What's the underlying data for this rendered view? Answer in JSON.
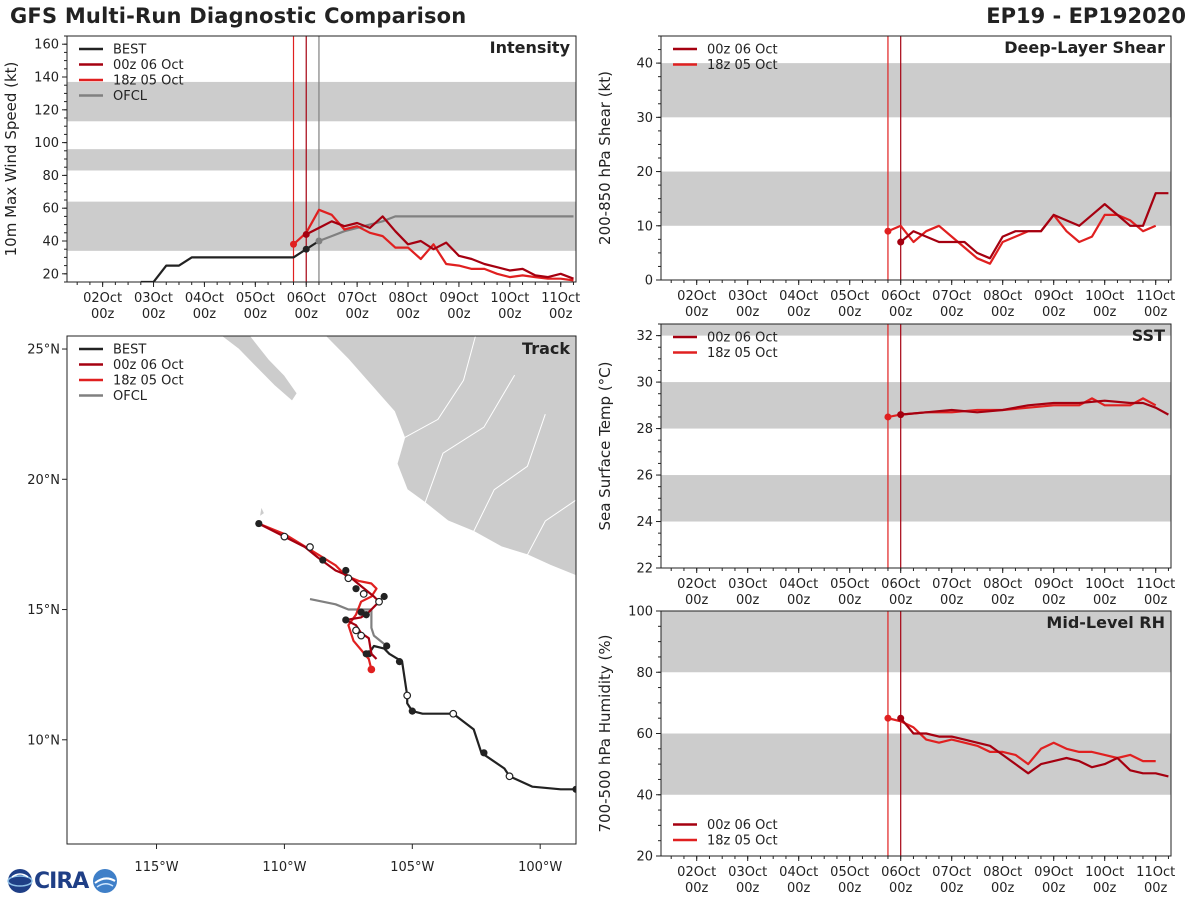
{
  "header": {
    "title": "GFS Multi-Run Diagnostic Comparison",
    "storm_id": "EP19 - EP192020"
  },
  "logo": {
    "text": "CIRA"
  },
  "colors": {
    "best": "#222222",
    "run00": "#a50010",
    "run18": "#e02020",
    "ofcl": "#808080",
    "band": "#cccccc",
    "land": "#cccccc"
  },
  "time_axis": {
    "ticks": [
      {
        "t": 0,
        "line1": "02Oct",
        "line2": "00z"
      },
      {
        "t": 1,
        "line1": "03Oct",
        "line2": "00z"
      },
      {
        "t": 2,
        "line1": "04Oct",
        "line2": "00z"
      },
      {
        "t": 3,
        "line1": "05Oct",
        "line2": "00z"
      },
      {
        "t": 4,
        "line1": "06Oct",
        "line2": "00z"
      },
      {
        "t": 5,
        "line1": "07Oct",
        "line2": "00z"
      },
      {
        "t": 6,
        "line1": "08Oct",
        "line2": "00z"
      },
      {
        "t": 7,
        "line1": "09Oct",
        "line2": "00z"
      },
      {
        "t": 8,
        "line1": "10Oct",
        "line2": "00z"
      },
      {
        "t": 9,
        "line1": "11Oct",
        "line2": "00z"
      }
    ],
    "xlim": [
      -0.7,
      9.3
    ]
  },
  "chart_data": [
    {
      "id": "intensity",
      "type": "line",
      "title": "Intensity",
      "ylabel": "10m Max Wind Speed (kt)",
      "xlim": [
        -0.7,
        9.3
      ],
      "ylim": [
        15,
        165
      ],
      "yticks": [
        20,
        40,
        60,
        80,
        100,
        120,
        140,
        160
      ],
      "bands": [
        [
          34,
          64
        ],
        [
          83,
          96
        ],
        [
          113,
          137
        ]
      ],
      "vlines": [
        {
          "t": 3.75,
          "color": "run18"
        },
        {
          "t": 4.0,
          "color": "run00"
        },
        {
          "t": 4.25,
          "color": "ofcl"
        }
      ],
      "legend": [
        {
          "label": "BEST",
          "color": "best"
        },
        {
          "label": "00z 06 Oct",
          "color": "run00"
        },
        {
          "label": "18z 05 Oct",
          "color": "run18"
        },
        {
          "label": "OFCL",
          "color": "ofcl"
        }
      ],
      "series": [
        {
          "name": "BEST",
          "color": "best",
          "x": [
            0.75,
            1.0,
            1.25,
            1.5,
            1.75,
            2.0,
            3.75,
            4.0,
            4.25
          ],
          "y": [
            15,
            15,
            25,
            25,
            30,
            30,
            30,
            35,
            40
          ],
          "markers": [
            4.0
          ]
        },
        {
          "name": "OFCL",
          "color": "ofcl",
          "x": [
            4.25,
            4.5,
            4.75,
            5.0,
            5.25,
            5.5,
            5.75,
            6.0,
            7.0,
            8.0,
            9.25
          ],
          "y": [
            40,
            43,
            46,
            48,
            50,
            52,
            55,
            55,
            55,
            55,
            55
          ],
          "markers": [
            4.25
          ]
        },
        {
          "name": "18z 05 Oct",
          "color": "run18",
          "x": [
            3.75,
            4.0,
            4.25,
            4.5,
            4.75,
            5.0,
            5.25,
            5.5,
            5.75,
            6.0,
            6.25,
            6.5,
            6.75,
            7.0,
            7.25,
            7.5,
            7.75,
            8.0,
            8.25,
            8.5,
            8.75,
            9.0,
            9.25
          ],
          "y": [
            38,
            45,
            59,
            56,
            47,
            49,
            45,
            43,
            36,
            36,
            29,
            38,
            26,
            25,
            23,
            23,
            20,
            18,
            19,
            18,
            17,
            17,
            16
          ],
          "markers": [
            3.75
          ]
        },
        {
          "name": "00z 06 Oct",
          "color": "run00",
          "x": [
            4.0,
            4.25,
            4.5,
            4.75,
            5.0,
            5.25,
            5.5,
            5.75,
            6.0,
            6.25,
            6.5,
            6.75,
            7.0,
            7.25,
            7.5,
            7.75,
            8.0,
            8.25,
            8.5,
            8.75,
            9.0,
            9.25
          ],
          "y": [
            44,
            48,
            52,
            49,
            51,
            48,
            55,
            46,
            38,
            40,
            35,
            39,
            31,
            29,
            26,
            24,
            22,
            23,
            19,
            18,
            20,
            17
          ],
          "markers": [
            4.0
          ]
        }
      ]
    },
    {
      "id": "shear",
      "type": "line",
      "title": "Deep-Layer Shear",
      "ylabel": "200-850 hPa Shear (kt)",
      "xlim": [
        -0.7,
        9.3
      ],
      "ylim": [
        0,
        45
      ],
      "yticks": [
        0,
        10,
        20,
        30,
        40
      ],
      "bands": [
        [
          10,
          20
        ],
        [
          30,
          40
        ]
      ],
      "vlines": [
        {
          "t": 3.75,
          "color": "run18"
        },
        {
          "t": 4.0,
          "color": "run00"
        }
      ],
      "legend": [
        {
          "label": "00z 06 Oct",
          "color": "run00"
        },
        {
          "label": "18z 05 Oct",
          "color": "run18"
        }
      ],
      "series": [
        {
          "name": "18z 05 Oct",
          "color": "run18",
          "x": [
            3.75,
            4.0,
            4.25,
            4.5,
            4.75,
            5.0,
            5.25,
            5.5,
            5.75,
            6.0,
            6.25,
            6.5,
            6.75,
            7.0,
            7.25,
            7.5,
            7.75,
            8.0,
            8.25,
            8.5,
            8.75,
            9.0
          ],
          "y": [
            9,
            10,
            7,
            9,
            10,
            8,
            6,
            4,
            3,
            7,
            8,
            9,
            9,
            12,
            9,
            7,
            8,
            12,
            12,
            11,
            9,
            10
          ],
          "markers": [
            3.75
          ]
        },
        {
          "name": "00z 06 Oct",
          "color": "run00",
          "x": [
            4.0,
            4.25,
            4.5,
            4.75,
            5.0,
            5.25,
            5.5,
            5.75,
            6.0,
            6.25,
            6.5,
            6.75,
            7.0,
            7.25,
            7.5,
            7.75,
            8.0,
            8.25,
            8.5,
            8.75,
            9.0,
            9.25
          ],
          "y": [
            7,
            9,
            8,
            7,
            7,
            7,
            5,
            4,
            8,
            9,
            9,
            9,
            12,
            11,
            10,
            12,
            14,
            12,
            10,
            10,
            16,
            16
          ],
          "markers": [
            4.0
          ]
        }
      ]
    },
    {
      "id": "sst",
      "type": "line",
      "title": "SST",
      "ylabel": "Sea Surface Temp (°C)",
      "xlim": [
        -0.7,
        9.3
      ],
      "ylim": [
        22,
        32.5
      ],
      "yticks": [
        22,
        24,
        26,
        28,
        30,
        32
      ],
      "bands": [
        [
          24,
          26
        ],
        [
          28,
          30
        ],
        [
          32,
          33
        ]
      ],
      "vlines": [
        {
          "t": 3.75,
          "color": "run18"
        },
        {
          "t": 4.0,
          "color": "run00"
        }
      ],
      "legend": [
        {
          "label": "00z 06 Oct",
          "color": "run00"
        },
        {
          "label": "18z 05 Oct",
          "color": "run18"
        }
      ],
      "series": [
        {
          "name": "18z 05 Oct",
          "color": "run18",
          "x": [
            3.75,
            4.0,
            4.5,
            5.0,
            5.5,
            6.0,
            6.5,
            7.0,
            7.5,
            7.75,
            8.0,
            8.5,
            8.75,
            9.0
          ],
          "y": [
            28.5,
            28.6,
            28.7,
            28.7,
            28.8,
            28.8,
            28.9,
            29.0,
            29.0,
            29.3,
            29.0,
            29.0,
            29.3,
            29.0
          ],
          "markers": [
            3.75
          ]
        },
        {
          "name": "00z 06 Oct",
          "color": "run00",
          "x": [
            4.0,
            4.5,
            5.0,
            5.5,
            6.0,
            6.5,
            7.0,
            7.5,
            8.0,
            8.5,
            8.75,
            9.0,
            9.25
          ],
          "y": [
            28.6,
            28.7,
            28.8,
            28.7,
            28.8,
            29.0,
            29.1,
            29.1,
            29.2,
            29.1,
            29.1,
            28.9,
            28.6
          ],
          "markers": [
            4.0
          ]
        }
      ]
    },
    {
      "id": "rh",
      "type": "line",
      "title": "Mid-Level RH",
      "ylabel": "700-500 hPa Humidity (%)",
      "xlim": [
        -0.7,
        9.3
      ],
      "ylim": [
        20,
        100
      ],
      "yticks": [
        20,
        40,
        60,
        80,
        100
      ],
      "bands": [
        [
          40,
          60
        ],
        [
          80,
          100
        ]
      ],
      "vlines": [
        {
          "t": 3.75,
          "color": "run18"
        },
        {
          "t": 4.0,
          "color": "run00"
        }
      ],
      "legend": [
        {
          "label": "00z 06 Oct",
          "color": "run00"
        },
        {
          "label": "18z 05 Oct",
          "color": "run18"
        }
      ],
      "series": [
        {
          "name": "18z 05 Oct",
          "color": "run18",
          "x": [
            3.75,
            4.0,
            4.25,
            4.5,
            4.75,
            5.0,
            5.25,
            5.5,
            5.75,
            6.0,
            6.25,
            6.5,
            6.75,
            7.0,
            7.25,
            7.5,
            7.75,
            8.0,
            8.25,
            8.5,
            8.75,
            9.0
          ],
          "y": [
            65,
            64,
            62,
            58,
            57,
            58,
            57,
            56,
            54,
            54,
            53,
            50,
            55,
            57,
            55,
            54,
            54,
            53,
            52,
            53,
            51,
            51
          ],
          "markers": [
            3.75
          ]
        },
        {
          "name": "00z 06 Oct",
          "color": "run00",
          "x": [
            4.0,
            4.25,
            4.5,
            4.75,
            5.0,
            5.25,
            5.5,
            5.75,
            6.0,
            6.25,
            6.5,
            6.75,
            7.0,
            7.25,
            7.5,
            7.75,
            8.0,
            8.25,
            8.5,
            8.75,
            9.0,
            9.25
          ],
          "y": [
            65,
            60,
            60,
            59,
            59,
            58,
            57,
            56,
            53,
            50,
            47,
            50,
            51,
            52,
            51,
            49,
            50,
            52,
            48,
            47,
            47,
            46
          ],
          "markers": [
            4.0
          ]
        }
      ]
    },
    {
      "id": "track",
      "type": "line",
      "title": "Track",
      "xlim": [
        -118.5,
        -98.6
      ],
      "ylim": [
        6,
        25.5
      ],
      "xticks": [
        {
          "v": -115,
          "label": "115°W"
        },
        {
          "v": -110,
          "label": "110°W"
        },
        {
          "v": -105,
          "label": "105°W"
        },
        {
          "v": -100,
          "label": "100°W"
        }
      ],
      "yticks": [
        {
          "v": 10,
          "label": "10°N"
        },
        {
          "v": 15,
          "label": "15°N"
        },
        {
          "v": 20,
          "label": "20°N"
        },
        {
          "v": 25,
          "label": "25°N"
        }
      ],
      "legend": [
        {
          "label": "BEST",
          "color": "best"
        },
        {
          "label": "00z 06 Oct",
          "color": "run00"
        },
        {
          "label": "18z 05 Oct",
          "color": "run18"
        },
        {
          "label": "OFCL",
          "color": "ofcl"
        }
      ],
      "series": [
        {
          "name": "BEST",
          "color": "best",
          "lon": [
            -98.6,
            -99.2,
            -100.3,
            -101.2,
            -101.4,
            -102.3,
            -102.6,
            -103.4,
            -104.0,
            -104.6,
            -105.0,
            -105.2,
            -105.2,
            -105.4,
            -105.9,
            -106.1,
            -106.5,
            -106.7
          ],
          "lat": [
            8.1,
            8.1,
            8.2,
            8.6,
            8.9,
            9.5,
            10.4,
            11.0,
            11.0,
            11.0,
            11.1,
            11.4,
            11.7,
            13.0,
            13.3,
            13.5,
            13.6,
            13.3
          ],
          "filled": [
            [
              -98.6,
              8.1
            ],
            [
              -102.2,
              9.5
            ],
            [
              -105.0,
              11.1
            ],
            [
              -105.5,
              13.0
            ],
            [
              -106.7,
              13.3
            ]
          ],
          "open": [
            [
              -101.2,
              8.6
            ],
            [
              -103.4,
              11.0
            ],
            [
              -105.2,
              11.7
            ]
          ]
        },
        {
          "name": "OFCL",
          "color": "ofcl",
          "lon": [
            -106.0,
            -106.5,
            -106.6,
            -106.6,
            -107.1,
            -107.5,
            -108.0,
            -109.0
          ],
          "lat": [
            13.6,
            14.0,
            14.3,
            15.0,
            15.0,
            15.0,
            15.2,
            15.4
          ],
          "filled": [
            [
              -106.0,
              13.6
            ]
          ],
          "open": []
        },
        {
          "name": "18z 05 Oct",
          "color": "run18",
          "lon": [
            -106.6,
            -106.7,
            -107.3,
            -107.5,
            -107.2,
            -107.0,
            -106.6,
            -106.4,
            -106.6,
            -107.1,
            -107.6,
            -108.0,
            -109.0,
            -110.0,
            -111.0
          ],
          "lat": [
            12.7,
            13.1,
            13.8,
            14.4,
            14.8,
            15.3,
            15.5,
            15.8,
            16.0,
            16.1,
            16.3,
            16.7,
            17.3,
            17.9,
            18.3
          ],
          "filled": [
            [
              -106.6,
              12.7
            ]
          ],
          "open": []
        },
        {
          "name": "00z 06 Oct",
          "color": "run00",
          "lon": [
            -106.4,
            -106.6,
            -106.7,
            -107.0,
            -107.2,
            -107.6,
            -107.0,
            -106.7,
            -106.3,
            -106.5,
            -107.0,
            -107.5,
            -108.0,
            -108.7,
            -109.2,
            -110.0,
            -111.0
          ],
          "lat": [
            13.1,
            13.3,
            13.9,
            14.1,
            14.4,
            14.6,
            14.7,
            14.9,
            15.3,
            15.5,
            15.9,
            16.3,
            16.5,
            17.0,
            17.4,
            17.8,
            18.3
          ],
          "filled": [
            [
              -111.0,
              18.3
            ],
            [
              -108.5,
              16.9
            ],
            [
              -107.6,
              16.5
            ],
            [
              -107.2,
              15.8
            ],
            [
              -106.1,
              15.5
            ],
            [
              -107.0,
              14.9
            ],
            [
              -106.8,
              14.8
            ],
            [
              -107.6,
              14.6
            ],
            [
              -106.8,
              13.3
            ]
          ],
          "open": [
            [
              -110.0,
              17.8
            ],
            [
              -109.0,
              17.4
            ],
            [
              -107.5,
              16.2
            ],
            [
              -106.9,
              15.6
            ],
            [
              -106.3,
              15.3
            ],
            [
              -107.2,
              14.2
            ],
            [
              -107.0,
              14.0
            ]
          ]
        }
      ]
    }
  ]
}
